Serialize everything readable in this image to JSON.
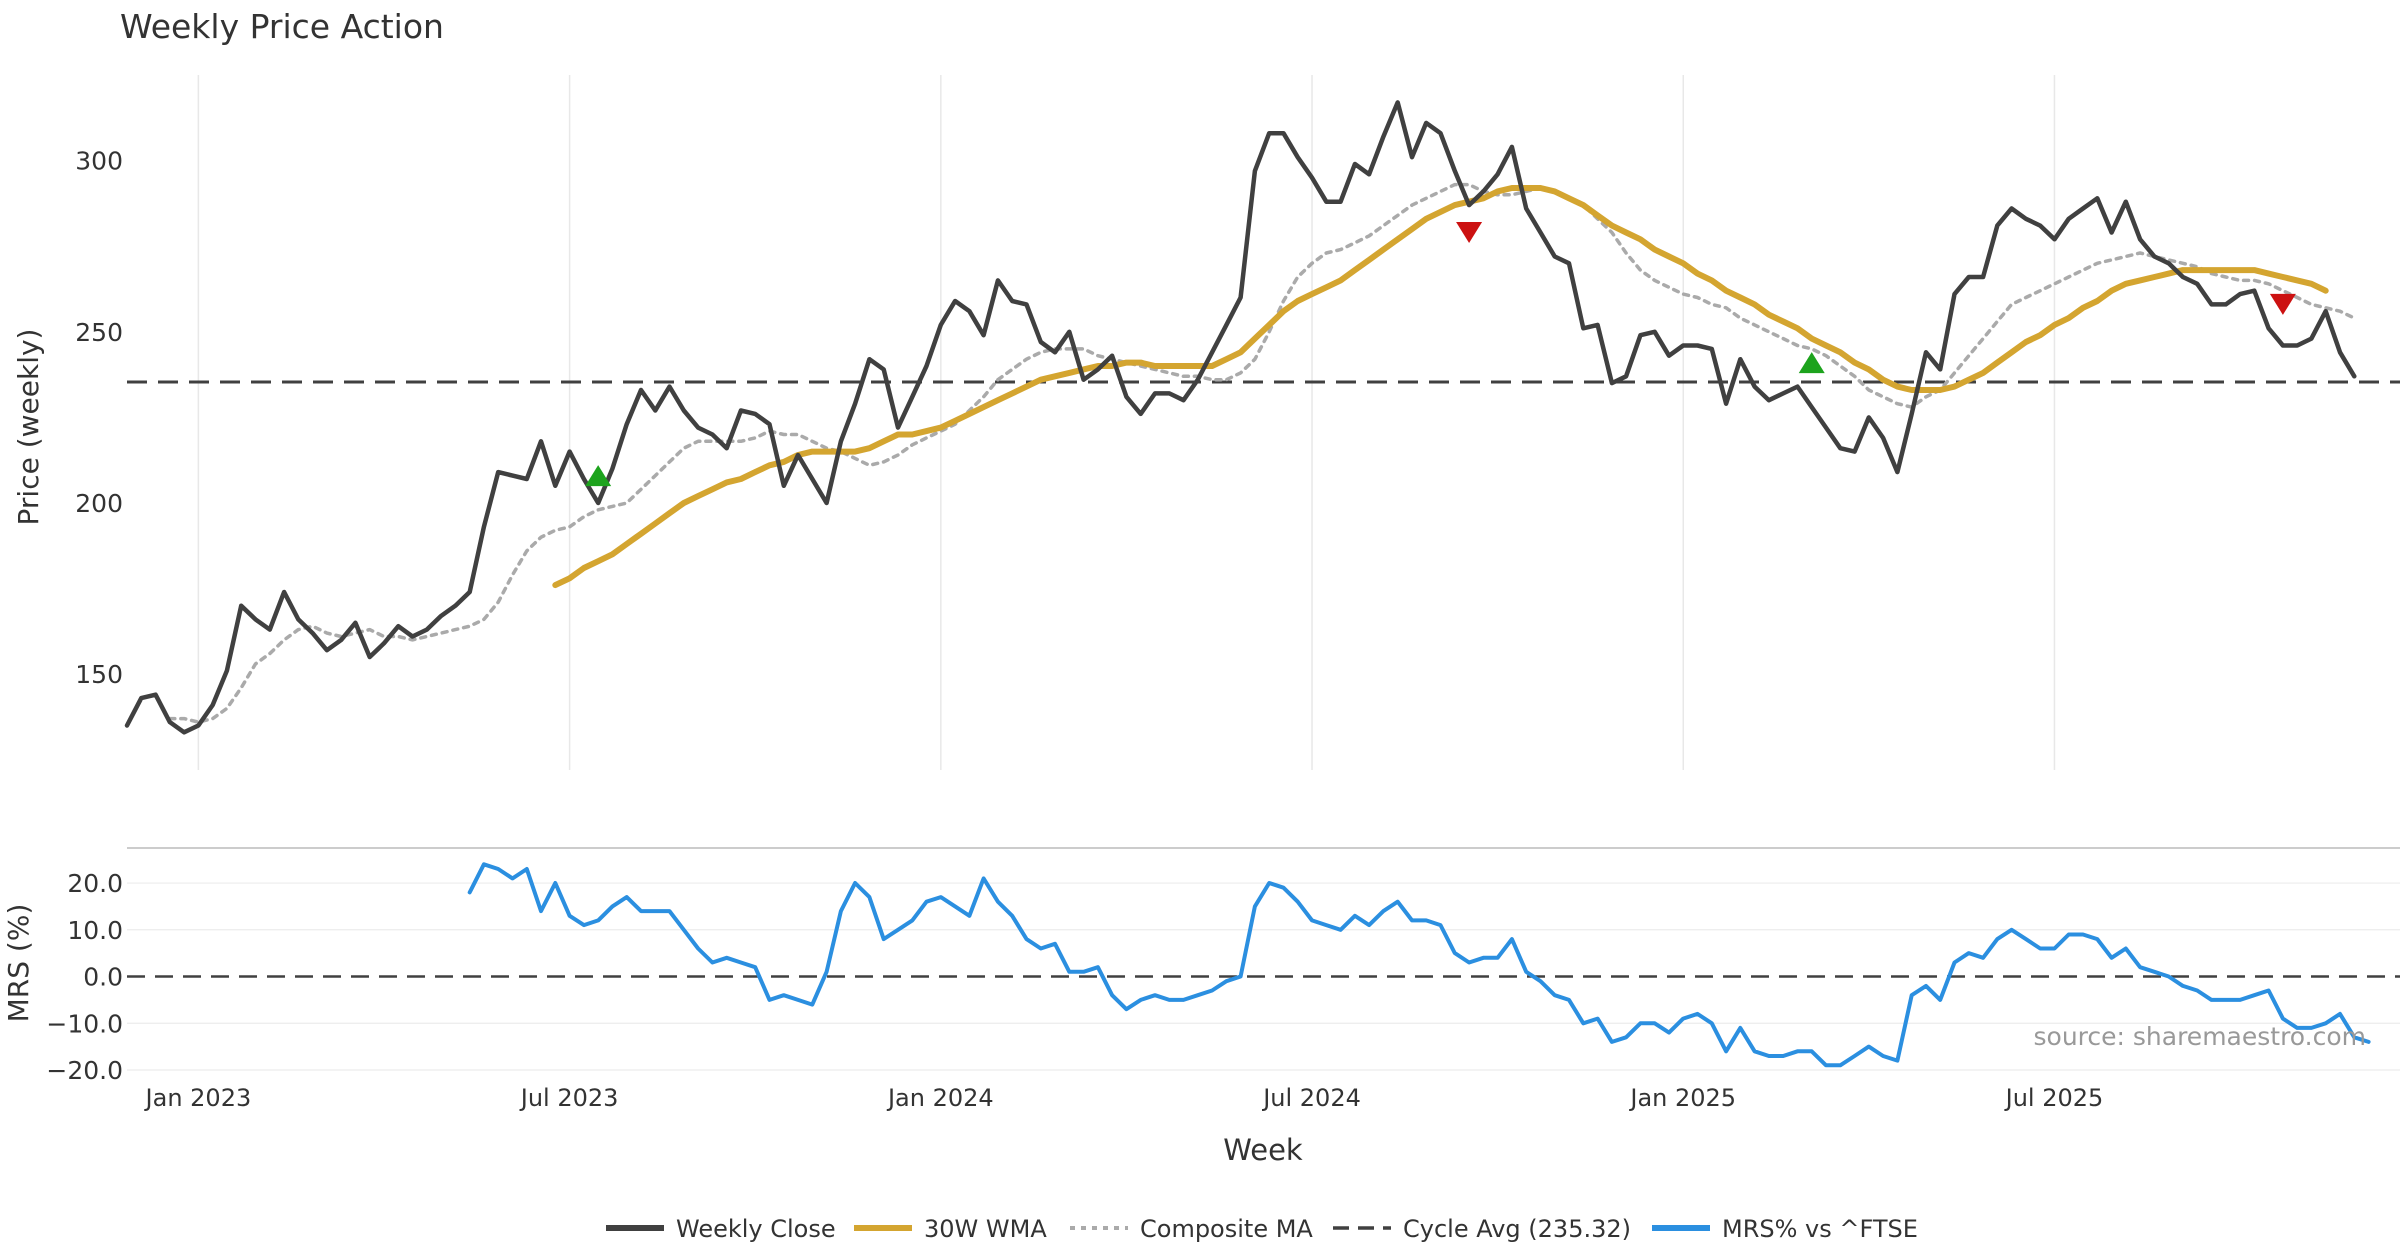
{
  "chart_data": {
    "type": "line",
    "title": "Weekly Price Action",
    "source": "source: sharemaestro.com",
    "xlabel": "Week",
    "x_ticks": [
      "Jan 2023",
      "Jul 2023",
      "Jan 2024",
      "Jul 2024",
      "Jan 2025",
      "Jul 2025"
    ],
    "x_tick_weeks": [
      5,
      31,
      57,
      83,
      109,
      135
    ],
    "week_count": 156,
    "price_panel": {
      "ylabel": "Price (weekly)",
      "ylim": [
        122,
        325
      ],
      "yticks": [
        150,
        200,
        250,
        300
      ],
      "cycle_avg": 235.32,
      "series": [
        {
          "name": "Weekly Close",
          "color": "#404040",
          "values": [
            135,
            143,
            144,
            136,
            133,
            135,
            141,
            151,
            170,
            166,
            163,
            174,
            166,
            162,
            157,
            160,
            165,
            155,
            159,
            164,
            161,
            163,
            167,
            170,
            174,
            193,
            209,
            208,
            207,
            218,
            205,
            215,
            207,
            200,
            210,
            223,
            233,
            227,
            234,
            227,
            222,
            220,
            216,
            227,
            226,
            223,
            205,
            214,
            207,
            200,
            218,
            229,
            242,
            239,
            222,
            231,
            240,
            252,
            259,
            256,
            249,
            265,
            259,
            258,
            247,
            244,
            250,
            236,
            239,
            243,
            231,
            226,
            232,
            232,
            230,
            236,
            244,
            252,
            260,
            297,
            308,
            308,
            301,
            295,
            288,
            288,
            299,
            296,
            307,
            317,
            301,
            311,
            308,
            297,
            287,
            291,
            296,
            304,
            286,
            279,
            272,
            270,
            251,
            252,
            235,
            237,
            249,
            250,
            243,
            246,
            246,
            245,
            229,
            242,
            234,
            230,
            232,
            234,
            228,
            222,
            216,
            215,
            225,
            219,
            209,
            226,
            244,
            239,
            261,
            266,
            266,
            281,
            286,
            283,
            281,
            277,
            283,
            286,
            289,
            279,
            288,
            277,
            272,
            270,
            266,
            264,
            258,
            258,
            261,
            262,
            251,
            246,
            246,
            248,
            256,
            244,
            237
          ],
          "start_week": 0
        },
        {
          "name": "30W WMA",
          "color": "#D4A530",
          "values": [
            176,
            178,
            181,
            183,
            185,
            188,
            191,
            194,
            197,
            200,
            202,
            204,
            206,
            207,
            209,
            211,
            212,
            214,
            215,
            215,
            215,
            215,
            216,
            218,
            220,
            220,
            221,
            222,
            224,
            226,
            228,
            230,
            232,
            234,
            236,
            237,
            238,
            239,
            240,
            240,
            241,
            241,
            240,
            240,
            240,
            240,
            240,
            242,
            244,
            248,
            252,
            256,
            259,
            261,
            263,
            265,
            268,
            271,
            274,
            277,
            280,
            283,
            285,
            287,
            288,
            289,
            291,
            292,
            292,
            292,
            291,
            289,
            287,
            284,
            281,
            279,
            277,
            274,
            272,
            270,
            267,
            265,
            262,
            260,
            258,
            255,
            253,
            251,
            248,
            246,
            244,
            241,
            239,
            236,
            234,
            233,
            233,
            233,
            234,
            236,
            238,
            241,
            244,
            247,
            249,
            252,
            254,
            257,
            259,
            262,
            264,
            265,
            266,
            267,
            268,
            268,
            268,
            268,
            268,
            268,
            267,
            266,
            265,
            264,
            262
          ],
          "start_week": 30
        },
        {
          "name": "Composite MA",
          "color": "#AAAAAA",
          "values": [
            137,
            137,
            136,
            137,
            140,
            146,
            153,
            156,
            160,
            163,
            164,
            162,
            161,
            162,
            163,
            161,
            161,
            160,
            161,
            162,
            163,
            164,
            166,
            171,
            179,
            186,
            190,
            192,
            193,
            196,
            198,
            199,
            200,
            204,
            208,
            212,
            216,
            218,
            218,
            218,
            218,
            219,
            221,
            220,
            220,
            218,
            216,
            215,
            213,
            211,
            212,
            214,
            217,
            219,
            221,
            223,
            227,
            231,
            236,
            239,
            242,
            244,
            245,
            245,
            245,
            243,
            242,
            241,
            240,
            239,
            238,
            237,
            237,
            236,
            236,
            238,
            242,
            250,
            259,
            266,
            270,
            273,
            274,
            276,
            278,
            281,
            284,
            287,
            289,
            291,
            293,
            293,
            291,
            290,
            290,
            291,
            292,
            291,
            289,
            287,
            283,
            279,
            273,
            268,
            265,
            263,
            261,
            260,
            258,
            257,
            254,
            252,
            250,
            248,
            246,
            245,
            243,
            240,
            237,
            233,
            231,
            229,
            228,
            231,
            233,
            238,
            243,
            248,
            253,
            258,
            260,
            262,
            264,
            266,
            268,
            270,
            271,
            272,
            273,
            272,
            271,
            270,
            269,
            267,
            266,
            265,
            265,
            264,
            262,
            260,
            258,
            257,
            256,
            254
          ],
          "start_week": 3
        }
      ],
      "markers": [
        {
          "type": "buy",
          "week": 33,
          "value": 208,
          "color": "#1DA31D"
        },
        {
          "type": "sell",
          "week": 94,
          "value": 279,
          "color": "#CC1111"
        },
        {
          "type": "buy",
          "week": 118,
          "value": 241,
          "color": "#1DA31D"
        },
        {
          "type": "sell",
          "week": 151,
          "value": 258,
          "color": "#CC1111"
        }
      ]
    },
    "mrs_panel": {
      "ylabel": "MRS (%)",
      "ylim": [
        -21.5,
        26
      ],
      "yticks": [
        20.0,
        10.0,
        0.0,
        -10.0,
        -20.0
      ],
      "ytick_labels": [
        "20.0",
        "10.0",
        "0.0",
        "−10.0",
        "−20.0"
      ],
      "series": {
        "name": "MRS% vs ^FTSE",
        "color": "#2B8FE0",
        "start_week": 24,
        "values": [
          18,
          24,
          23,
          21,
          23,
          14,
          20,
          13,
          11,
          12,
          15,
          17,
          14,
          14,
          14,
          10,
          6,
          3,
          4,
          3,
          2,
          -5,
          -4,
          -5,
          -6,
          1,
          14,
          20,
          17,
          8,
          10,
          12,
          16,
          17,
          15,
          13,
          21,
          16,
          13,
          8,
          6,
          7,
          1,
          1,
          2,
          -4,
          -7,
          -5,
          -4,
          -5,
          -5,
          -4,
          -3,
          -1,
          0,
          15,
          20,
          19,
          16,
          12,
          11,
          10,
          13,
          11,
          14,
          16,
          12,
          12,
          11,
          5,
          3,
          4,
          4,
          8,
          1,
          -1,
          -4,
          -5,
          -10,
          -9,
          -14,
          -13,
          -10,
          -10,
          -12,
          -9,
          -8,
          -10,
          -16,
          -11,
          -16,
          -17,
          -17,
          -16,
          -16,
          -19,
          -19,
          -17,
          -15,
          -17,
          -18,
          -4,
          -2,
          -5,
          3,
          5,
          4,
          8,
          10,
          8,
          6,
          6,
          9,
          9,
          8,
          4,
          6,
          2,
          1,
          0,
          -2,
          -3,
          -5,
          -5,
          -5,
          -4,
          -3,
          -9,
          -11,
          -11,
          -10,
          -8,
          -13,
          -14
        ]
      }
    },
    "legend": [
      {
        "label": "Weekly Close",
        "style": "solid",
        "color": "#404040"
      },
      {
        "label": "30W WMA",
        "style": "solid",
        "color": "#D4A530"
      },
      {
        "label": "Composite MA",
        "style": "dotted",
        "color": "#AAAAAA"
      },
      {
        "label": "Cycle Avg (235.32)",
        "style": "dashed",
        "color": "#404040"
      },
      {
        "label": "MRS% vs ^FTSE",
        "style": "solid",
        "color": "#2B8FE0"
      }
    ]
  }
}
